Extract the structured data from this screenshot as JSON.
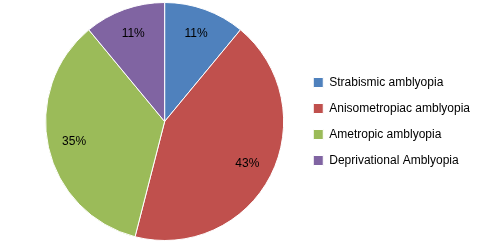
{
  "chart_data": {
    "type": "pie",
    "categories": [
      "Strabismic amblyopia",
      "Anisometropiac amblyopia",
      "Ametropic amblyopia",
      "Deprivational Amblyopia"
    ],
    "values": [
      11,
      43,
      35,
      11
    ],
    "value_labels": [
      "11%",
      "43%",
      "35%",
      "11%"
    ],
    "colors": [
      "#4f81bd",
      "#c0504d",
      "#9bbb59",
      "#8064a2"
    ],
    "data_labels": true,
    "legend": "right"
  }
}
